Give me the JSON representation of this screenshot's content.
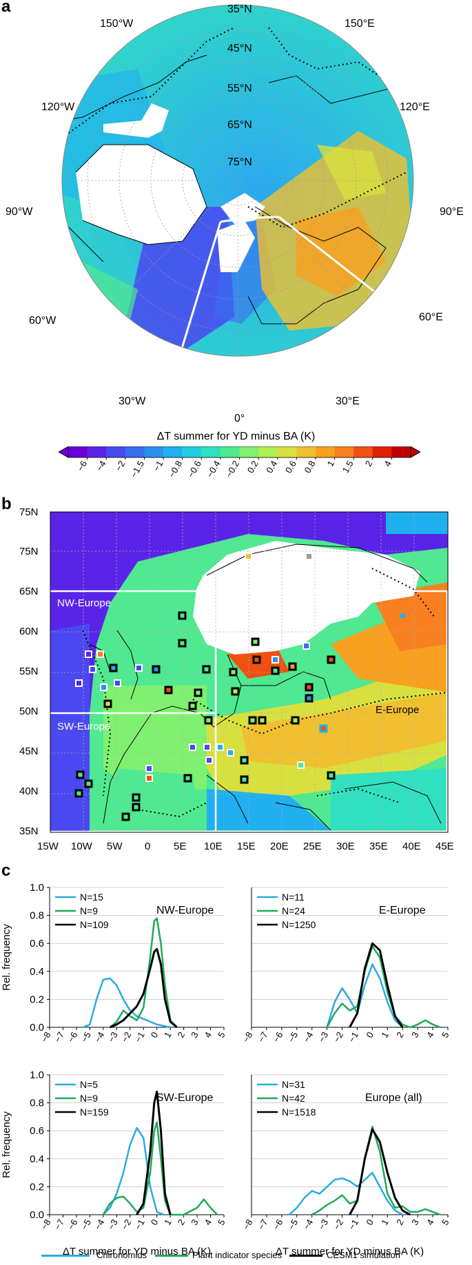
{
  "panel_a": {
    "letter": "a",
    "lon_labels": [
      {
        "text": "150°W"
      },
      {
        "text": "35°N"
      },
      {
        "text": "150°E"
      },
      {
        "text": "45°N"
      },
      {
        "text": "120°W"
      },
      {
        "text": "55°N"
      },
      {
        "text": "120°E"
      },
      {
        "text": "65°N"
      },
      {
        "text": "75°N"
      },
      {
        "text": "90°W"
      },
      {
        "text": "90°E"
      },
      {
        "text": "60°W"
      },
      {
        "text": "60°E"
      },
      {
        "text": "30°W"
      },
      {
        "text": "30°E"
      },
      {
        "text": "0°"
      }
    ],
    "colorbar_title": "ΔT summer for YD minus BA (K)",
    "colorbar_ticks": [
      "−6",
      "−4",
      "−2",
      "−1.5",
      "−1",
      "−0.8",
      "−0.6",
      "−0.4",
      "−0.2",
      "0.2",
      "0.4",
      "0.6",
      "0.8",
      "1",
      "1.5",
      "2",
      "4"
    ],
    "colors": [
      "#6a00d8",
      "#5a24e8",
      "#4a48f0",
      "#3a6cf0",
      "#2a90f0",
      "#20b0f0",
      "#20d0e0",
      "#30e0c0",
      "#50e890",
      "#80f070",
      "#b0f050",
      "#d8e040",
      "#f0c030",
      "#f8a020",
      "#f88020",
      "#f05010",
      "#e02000",
      "#c00000"
    ]
  },
  "panel_b": {
    "letter": "b",
    "region_labels": [
      "NW-Europe",
      "SW-Europe",
      "E-Europe"
    ],
    "lat_labels": [
      "75N",
      "70N",
      "65N",
      "60N",
      "55N",
      "50N",
      "45N",
      "40N",
      "35N"
    ],
    "lon_labels": [
      "15W",
      "10W",
      "5W",
      "0",
      "5E",
      "10E",
      "15E",
      "20E",
      "25E",
      "30E",
      "35E",
      "40E",
      "45E"
    ]
  },
  "panel_c": {
    "letter": "c",
    "legend": {
      "chironomids": "Chironomids",
      "plants": "Plant indicator species",
      "cesm": "CESM1 simulation"
    },
    "series_colors": {
      "chironomids": "#29abe2",
      "plants": "#1eaa5a",
      "cesm": "#000000"
    },
    "ylabel": "Rel. frequency",
    "xlabel": "ΔT summer for YD minus BA (K)"
  },
  "chart_data": [
    {
      "type": "line",
      "title": "NW-Europe",
      "ylabel": "Rel. frequency",
      "xlabel": "",
      "xlim": [
        -8,
        5
      ],
      "ylim": [
        0,
        1.0
      ],
      "x_ticks": [
        "−8",
        "−7",
        "−6",
        "−5",
        "−4",
        "−3",
        "−2",
        "−1",
        "0",
        "1",
        "2",
        "3",
        "4",
        "5"
      ],
      "y_ticks": [
        "0.0",
        "0.2",
        "0.4",
        "0.6",
        "0.8",
        "1.0"
      ],
      "series": [
        {
          "name": "N=15",
          "x": [
            -5.5,
            -5,
            -4.5,
            -4,
            -3.5,
            -3,
            -2.5,
            -2,
            -1.5,
            -1,
            -0.5,
            0,
            0.5,
            1
          ],
          "y": [
            0,
            0.02,
            0.2,
            0.34,
            0.35,
            0.3,
            0.2,
            0.12,
            0.08,
            0.06,
            0.04,
            0.02,
            0.01,
            0
          ]
        },
        {
          "name": "N=9",
          "x": [
            -3.5,
            -3,
            -2.5,
            -2,
            -1.5,
            -1,
            -0.5,
            -0.2,
            0,
            0.3,
            0.6,
            1,
            1.5
          ],
          "y": [
            0,
            0.04,
            0.12,
            0.08,
            0.05,
            0.14,
            0.5,
            0.76,
            0.78,
            0.6,
            0.3,
            0.05,
            0
          ]
        },
        {
          "name": "N=109",
          "x": [
            -3.5,
            -3,
            -2.5,
            -2,
            -1.5,
            -1,
            -0.5,
            -0.2,
            0,
            0.3,
            0.6,
            1,
            1.5
          ],
          "y": [
            0,
            0.02,
            0.05,
            0.1,
            0.15,
            0.24,
            0.42,
            0.54,
            0.56,
            0.45,
            0.2,
            0.04,
            0
          ]
        }
      ]
    },
    {
      "type": "line",
      "title": "E-Europe",
      "ylabel": "",
      "xlabel": "",
      "xlim": [
        -8,
        5
      ],
      "ylim": [
        0,
        1.0
      ],
      "x_ticks": [
        "−8",
        "−7",
        "−6",
        "−5",
        "−4",
        "−3",
        "−2",
        "−1",
        "0",
        "1",
        "2",
        "3",
        "4",
        "5"
      ],
      "y_ticks": [],
      "series": [
        {
          "name": "N=11",
          "x": [
            -3,
            -2.5,
            -2,
            -1.5,
            -1,
            -0.5,
            0,
            0.5,
            1,
            1.5,
            2
          ],
          "y": [
            0,
            0.18,
            0.28,
            0.2,
            0.1,
            0.3,
            0.45,
            0.35,
            0.18,
            0.05,
            0
          ]
        },
        {
          "name": "N=24",
          "x": [
            -3,
            -2.5,
            -2,
            -1.5,
            -1,
            -0.5,
            0,
            0.5,
            1,
            1.5,
            2,
            2.5,
            3,
            3.5,
            4,
            4.5
          ],
          "y": [
            0,
            0.1,
            0.17,
            0.12,
            0.15,
            0.4,
            0.58,
            0.5,
            0.25,
            0.08,
            0.02,
            0,
            0.02,
            0.05,
            0.02,
            0
          ]
        },
        {
          "name": "N=1250",
          "x": [
            -1.5,
            -1,
            -0.5,
            0,
            0.5,
            1,
            1.5,
            2
          ],
          "y": [
            0,
            0.1,
            0.42,
            0.6,
            0.55,
            0.3,
            0.08,
            0
          ]
        }
      ]
    },
    {
      "type": "line",
      "title": "SW-Europe",
      "ylabel": "Rel. frequency",
      "xlabel": "ΔT summer for YD minus BA (K)",
      "xlim": [
        -8,
        5
      ],
      "ylim": [
        0,
        1.0
      ],
      "x_ticks": [
        "−8",
        "−7",
        "−6",
        "−5",
        "−4",
        "−3",
        "−2",
        "−1",
        "0",
        "1",
        "2",
        "3",
        "4",
        "5"
      ],
      "y_ticks": [
        "0.0",
        "0.2",
        "0.4",
        "0.6",
        "0.8",
        "1.0"
      ],
      "series": [
        {
          "name": "N=5",
          "x": [
            -4,
            -3.5,
            -3,
            -2.5,
            -2,
            -1.5,
            -1,
            -0.5,
            0,
            0.5
          ],
          "y": [
            0,
            0.05,
            0.15,
            0.3,
            0.5,
            0.62,
            0.55,
            0.2,
            0.02,
            0
          ]
        },
        {
          "name": "N=9",
          "x": [
            -4,
            -3.5,
            -3,
            -2.5,
            -2,
            -1.5,
            -1,
            -0.5,
            -0.2,
            0,
            0.3,
            0.6,
            1,
            2,
            3,
            3.5,
            4,
            4.5
          ],
          "y": [
            0,
            0.08,
            0.12,
            0.13,
            0.08,
            0.02,
            0.05,
            0.3,
            0.6,
            0.66,
            0.4,
            0.1,
            0,
            0,
            0.05,
            0.11,
            0.05,
            0
          ]
        },
        {
          "name": "N=159",
          "x": [
            -1.5,
            -1,
            -0.5,
            -0.2,
            0,
            0.3,
            0.6,
            1
          ],
          "y": [
            0,
            0.08,
            0.45,
            0.8,
            0.88,
            0.6,
            0.15,
            0
          ]
        }
      ]
    },
    {
      "type": "line",
      "title": "Europe (all)",
      "ylabel": "",
      "xlabel": "ΔT summer for YD minus BA (K)",
      "xlim": [
        -8,
        5
      ],
      "ylim": [
        0,
        1.0
      ],
      "x_ticks": [
        "−8",
        "−7",
        "−6",
        "−5",
        "−4",
        "−3",
        "−2",
        "−1",
        "0",
        "1",
        "2",
        "3",
        "4",
        "5"
      ],
      "y_ticks": [],
      "series": [
        {
          "name": "N=31",
          "x": [
            -5.5,
            -5,
            -4.5,
            -4,
            -3.5,
            -3,
            -2.5,
            -2,
            -1.5,
            -1,
            -0.5,
            0,
            0.5,
            1,
            1.5,
            2
          ],
          "y": [
            0,
            0.05,
            0.12,
            0.17,
            0.15,
            0.2,
            0.25,
            0.26,
            0.24,
            0.2,
            0.25,
            0.3,
            0.2,
            0.1,
            0.03,
            0
          ]
        },
        {
          "name": "N=42",
          "x": [
            -4,
            -3.5,
            -3,
            -2.5,
            -2,
            -1.5,
            -1,
            -0.5,
            0,
            0.5,
            1,
            1.5,
            2,
            2.5,
            3,
            3.5,
            4,
            4.5
          ],
          "y": [
            0,
            0.03,
            0.07,
            0.1,
            0.14,
            0.08,
            0.1,
            0.4,
            0.63,
            0.45,
            0.15,
            0.05,
            0.06,
            0.02,
            0.02,
            0.04,
            0.02,
            0
          ]
        },
        {
          "name": "N=1518",
          "x": [
            -1.5,
            -1,
            -0.5,
            0,
            0.5,
            1,
            1.5,
            2,
            2.5
          ],
          "y": [
            0,
            0.1,
            0.4,
            0.61,
            0.52,
            0.3,
            0.12,
            0.03,
            0
          ]
        }
      ]
    }
  ]
}
